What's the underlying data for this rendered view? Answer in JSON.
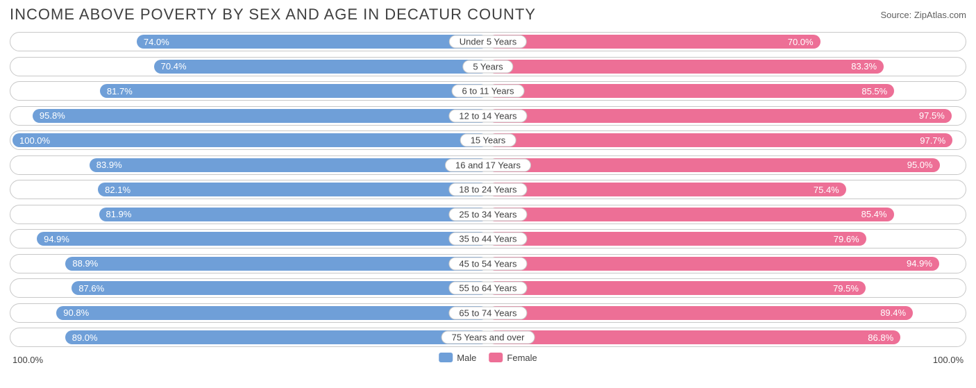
{
  "title": "INCOME ABOVE POVERTY BY SEX AND AGE IN DECATUR COUNTY",
  "source": "Source: ZipAtlas.com",
  "chart": {
    "type": "diverging-bar",
    "male_color": "#6f9fd8",
    "female_color": "#ed6f96",
    "border_color": "#c8c8c8",
    "bg_color": "#ffffff",
    "bar_text_color": "#ffffff",
    "label_text_color": "#404040",
    "bar_fontsize": 13,
    "title_fontsize": 22,
    "axis_left_label": "100.0%",
    "axis_right_label": "100.0%",
    "legend": {
      "male": "Male",
      "female": "Female"
    },
    "rows": [
      {
        "age": "Under 5 Years",
        "male": 74.0,
        "male_label": "74.0%",
        "female": 70.0,
        "female_label": "70.0%"
      },
      {
        "age": "5 Years",
        "male": 70.4,
        "male_label": "70.4%",
        "female": 83.3,
        "female_label": "83.3%"
      },
      {
        "age": "6 to 11 Years",
        "male": 81.7,
        "male_label": "81.7%",
        "female": 85.5,
        "female_label": "85.5%"
      },
      {
        "age": "12 to 14 Years",
        "male": 95.8,
        "male_label": "95.8%",
        "female": 97.5,
        "female_label": "97.5%"
      },
      {
        "age": "15 Years",
        "male": 100.0,
        "male_label": "100.0%",
        "female": 97.7,
        "female_label": "97.7%"
      },
      {
        "age": "16 and 17 Years",
        "male": 83.9,
        "male_label": "83.9%",
        "female": 95.0,
        "female_label": "95.0%"
      },
      {
        "age": "18 to 24 Years",
        "male": 82.1,
        "male_label": "82.1%",
        "female": 75.4,
        "female_label": "75.4%"
      },
      {
        "age": "25 to 34 Years",
        "male": 81.9,
        "male_label": "81.9%",
        "female": 85.4,
        "female_label": "85.4%"
      },
      {
        "age": "35 to 44 Years",
        "male": 94.9,
        "male_label": "94.9%",
        "female": 79.6,
        "female_label": "79.6%"
      },
      {
        "age": "45 to 54 Years",
        "male": 88.9,
        "male_label": "88.9%",
        "female": 94.9,
        "female_label": "94.9%"
      },
      {
        "age": "55 to 64 Years",
        "male": 87.6,
        "male_label": "87.6%",
        "female": 79.5,
        "female_label": "79.5%"
      },
      {
        "age": "65 to 74 Years",
        "male": 90.8,
        "male_label": "90.8%",
        "female": 89.4,
        "female_label": "89.4%"
      },
      {
        "age": "75 Years and over",
        "male": 89.0,
        "male_label": "89.0%",
        "female": 86.8,
        "female_label": "86.8%"
      }
    ]
  }
}
